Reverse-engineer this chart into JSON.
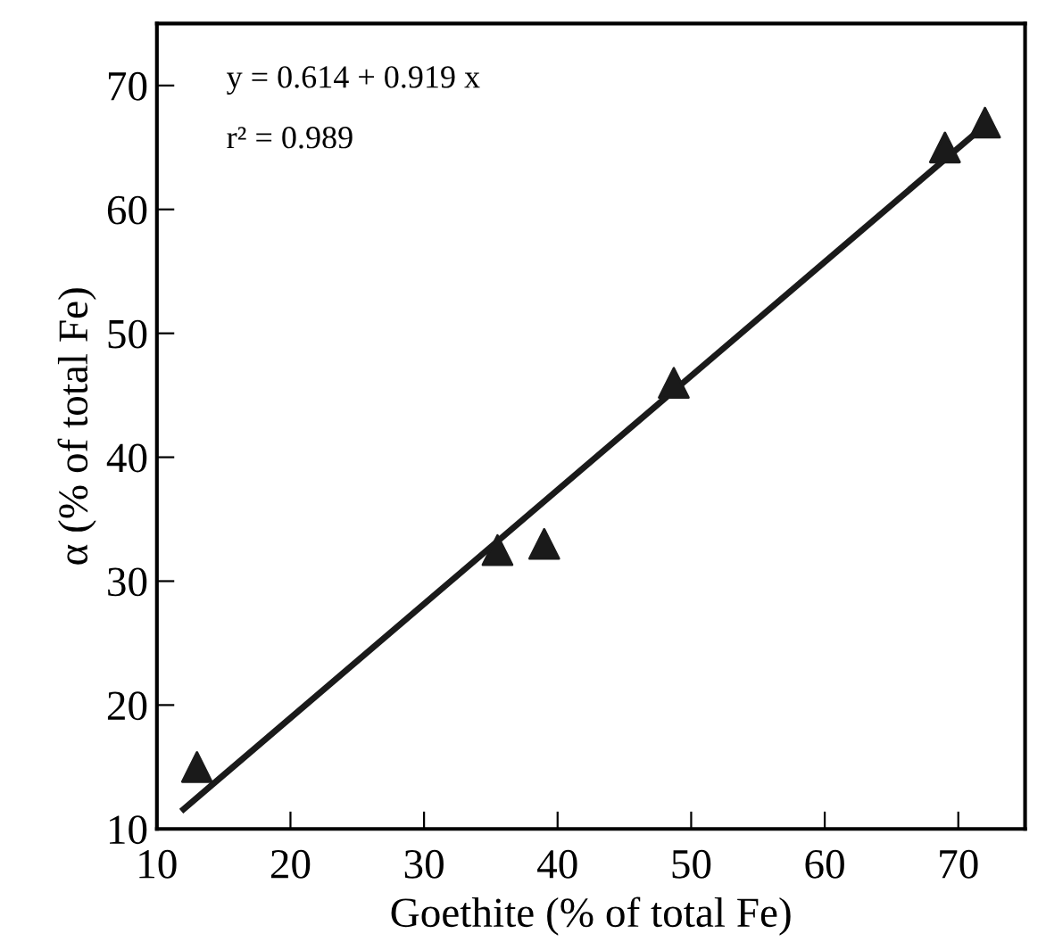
{
  "chart_data": {
    "type": "scatter",
    "xlabel": "Goethite (% of total Fe)",
    "ylabel": "α (% of total Fe)",
    "xlim": [
      10,
      75
    ],
    "ylim": [
      10,
      75
    ],
    "xticks": [
      10,
      20,
      30,
      40,
      50,
      60,
      70
    ],
    "yticks": [
      10,
      20,
      30,
      40,
      50,
      60,
      70
    ],
    "grid": false,
    "legend": false,
    "annotations": [
      "y = 0.614 + 0.919 x",
      "r² = 0.989"
    ],
    "series": [
      {
        "color": "#1a1a1a",
        "marker": "triangle",
        "x": [
          13,
          35.5,
          39,
          48.7,
          69,
          72
        ],
        "values": [
          15,
          32.5,
          33,
          46,
          65,
          67
        ]
      },
      {
        "type": "line",
        "color": "#1a1a1a",
        "marker": "none",
        "line_style": "solid",
        "x": [
          12,
          72
        ],
        "values": [
          11.6,
          66.8
        ]
      }
    ]
  }
}
